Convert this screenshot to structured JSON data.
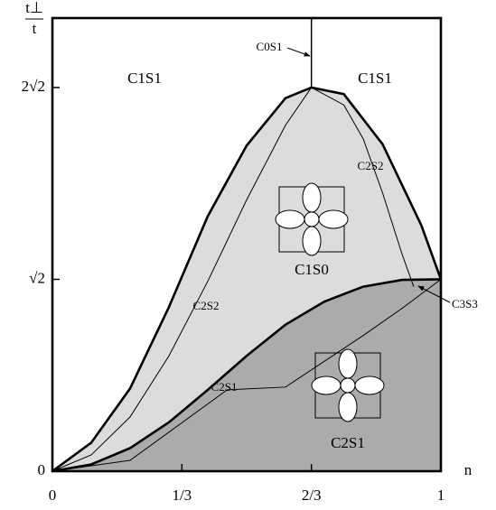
{
  "chart_data": {
    "type": "phase",
    "y_label_num": "t⊥",
    "y_label_den": "t",
    "x_label": "n",
    "xlim": [
      0,
      1
    ],
    "ylim": [
      0,
      3.34
    ],
    "xticks": [
      0,
      {
        "value": 0.3333,
        "label": "1/3"
      },
      {
        "value": 0.6667,
        "label": "2/3"
      },
      1
    ],
    "yticks": [
      0,
      {
        "value": 1.414,
        "label": "√2"
      },
      {
        "value": 2.828,
        "label": "2√2"
      }
    ],
    "series": [
      {
        "x": [
          0,
          0.1,
          0.2,
          0.3,
          0.4,
          0.5,
          0.6,
          0.6667,
          0.75,
          0.85,
          0.95,
          1
        ],
        "values": [
          0,
          0.21,
          0.61,
          1.21,
          1.88,
          2.4,
          2.75,
          2.828,
          2.78,
          2.41,
          1.81,
          1.414
        ],
        "color": "#000000",
        "line_width": 2.6,
        "fill": "#dcdcdc"
      },
      {
        "x": [
          0,
          0.1,
          0.2,
          0.3,
          0.4,
          0.5,
          0.6,
          0.7,
          0.8,
          0.9,
          1
        ],
        "values": [
          0,
          0.05,
          0.17,
          0.36,
          0.6,
          0.85,
          1.08,
          1.25,
          1.36,
          1.41,
          1.414
        ],
        "color": "#000000",
        "line_width": 2.6,
        "fill": "#ababab"
      },
      {
        "name": "C2S2",
        "x": [
          0,
          0.1,
          0.2,
          0.3,
          0.4,
          0.5,
          0.6,
          0.6667
        ],
        "values": [
          0,
          0.12,
          0.4,
          0.85,
          1.4,
          2.0,
          2.55,
          2.828
        ],
        "color": "#000000",
        "line_width": 1
      },
      {
        "name": "C2S2",
        "x": [
          0.6667,
          0.75,
          0.8,
          0.85,
          0.9,
          0.93
        ],
        "values": [
          2.828,
          2.7,
          2.45,
          2.05,
          1.6,
          1.36
        ],
        "color": "#000000",
        "line_width": 1
      },
      {
        "name": "C2S1",
        "x": [
          0,
          0.2,
          0.45,
          0.6,
          0.8,
          0.9,
          1
        ],
        "values": [
          0,
          0.08,
          0.6,
          0.62,
          1.0,
          1.2,
          1.414
        ],
        "color": "#000000",
        "line_width": 1
      },
      {
        "name": "C0S1",
        "x": [
          0.6667,
          0.6667
        ],
        "values": [
          2.828,
          3.34
        ],
        "color": "#000000",
        "line_width": 1.5
      }
    ],
    "regions": [
      "C1S1",
      "C1S1",
      "C1S0",
      "C2S1",
      "C3S3"
    ]
  }
}
